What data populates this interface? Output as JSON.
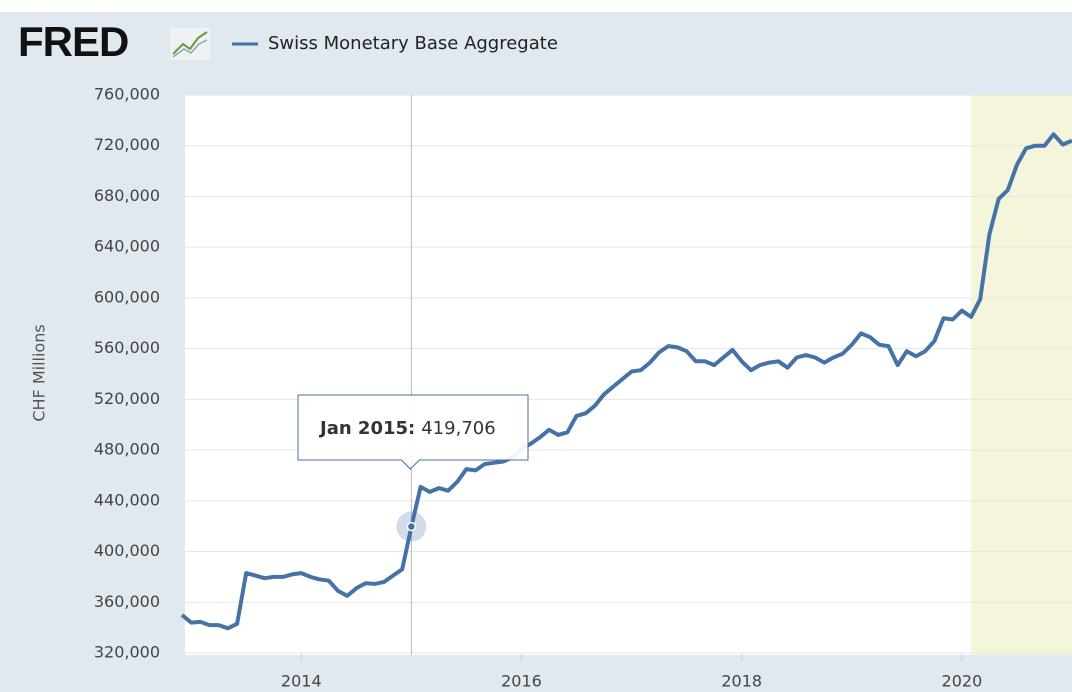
{
  "chart_data": {
    "type": "line",
    "logo": "FRED",
    "ylabel": "CHF Millions",
    "x": [
      "2012-12",
      "2013-01",
      "2013-02",
      "2013-03",
      "2013-04",
      "2013-05",
      "2013-06",
      "2013-07",
      "2013-08",
      "2013-09",
      "2013-10",
      "2013-11",
      "2013-12",
      "2014-01",
      "2014-02",
      "2014-03",
      "2014-04",
      "2014-05",
      "2014-06",
      "2014-07",
      "2014-08",
      "2014-09",
      "2014-10",
      "2014-11",
      "2014-12",
      "2015-01",
      "2015-02",
      "2015-03",
      "2015-04",
      "2015-05",
      "2015-06",
      "2015-07",
      "2015-08",
      "2015-09",
      "2015-10",
      "2015-11",
      "2015-12",
      "2016-01",
      "2016-02",
      "2016-03",
      "2016-04",
      "2016-05",
      "2016-06",
      "2016-07",
      "2016-08",
      "2016-09",
      "2016-10",
      "2016-11",
      "2016-12",
      "2017-01",
      "2017-02",
      "2017-03",
      "2017-04",
      "2017-05",
      "2017-06",
      "2017-07",
      "2017-08",
      "2017-09",
      "2017-10",
      "2017-11",
      "2017-12",
      "2018-01",
      "2018-02",
      "2018-03",
      "2018-04",
      "2018-05",
      "2018-06",
      "2018-07",
      "2018-08",
      "2018-09",
      "2018-10",
      "2018-11",
      "2018-12",
      "2019-01",
      "2019-02",
      "2019-03",
      "2019-04",
      "2019-05",
      "2019-06",
      "2019-07",
      "2019-08",
      "2019-09",
      "2019-10",
      "2019-11",
      "2019-12",
      "2020-01",
      "2020-02",
      "2020-03",
      "2020-04",
      "2020-05",
      "2020-06",
      "2020-07",
      "2020-08",
      "2020-09",
      "2020-10",
      "2020-11",
      "2020-12",
      "2021-01"
    ],
    "series": [
      {
        "name": "Swiss Monetary Base Aggregate",
        "color": "#4572a7",
        "values": [
          350000,
          344000,
          344500,
          342000,
          342000,
          339500,
          343000,
          383000,
          381000,
          379000,
          380000,
          380000,
          382000,
          383000,
          380000,
          378000,
          377000,
          369000,
          365000,
          371000,
          375000,
          374500,
          376000,
          381000,
          386000,
          419706,
          451000,
          447000,
          450000,
          448000,
          455000,
          465000,
          464000,
          469000,
          470000,
          471000,
          474000,
          481000,
          485000,
          490000,
          496000,
          492000,
          494000,
          507000,
          509000,
          515000,
          524000,
          530000,
          536000,
          542000,
          543000,
          549000,
          557000,
          562000,
          561000,
          558000,
          550000,
          550000,
          547000,
          553000,
          559000,
          550000,
          543000,
          547000,
          549000,
          550000,
          545000,
          553000,
          555000,
          553000,
          549000,
          553000,
          556000,
          563000,
          572000,
          569000,
          563000,
          562000,
          547000,
          558000,
          554000,
          558000,
          566000,
          584000,
          583000,
          590000,
          585000,
          599000,
          650000,
          678000,
          685000,
          705000,
          718000,
          720000,
          720000,
          729000,
          721000,
          724000
        ]
      }
    ],
    "xlim": [
      "2012-12",
      "2021-01"
    ],
    "xticks": [
      2014,
      2016,
      2018,
      2020
    ],
    "ylim": [
      320000,
      760000
    ],
    "yticks": [
      {
        "value": 320000,
        "label": "320,000"
      },
      {
        "value": 360000,
        "label": "360,000"
      },
      {
        "value": 400000,
        "label": "400,000"
      },
      {
        "value": 440000,
        "label": "440,000"
      },
      {
        "value": 480000,
        "label": "480,000"
      },
      {
        "value": 520000,
        "label": "520,000"
      },
      {
        "value": 560000,
        "label": "560,000"
      },
      {
        "value": 600000,
        "label": "600,000"
      },
      {
        "value": 640000,
        "label": "640,000"
      },
      {
        "value": 680000,
        "label": "680,000"
      },
      {
        "value": 720000,
        "label": "720,000"
      },
      {
        "value": 760000,
        "label": "760,000"
      }
    ],
    "grid": true,
    "recession": [
      "2020-02",
      "2021-01"
    ],
    "recession_color": "#f5f5dc",
    "tooltip": {
      "title": "Jan 2015:",
      "value_label": "419,706"
    }
  }
}
